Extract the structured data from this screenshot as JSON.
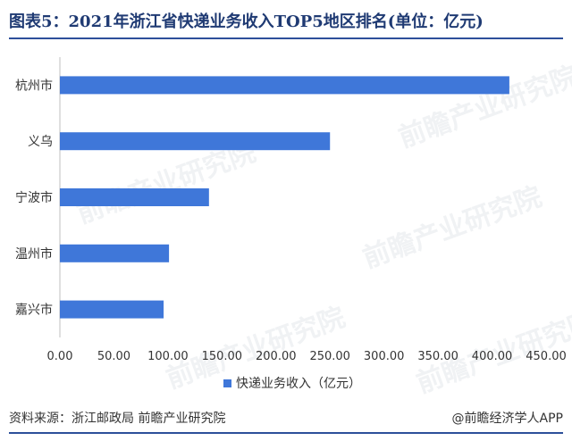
{
  "header": {
    "title": "图表5：2021年浙江省快递业务收入TOP5地区排名(单位：亿元)"
  },
  "footer": {
    "source": "资料来源：浙江邮政局 前瞻产业研究院",
    "copyright": "@前瞻经济学人APP"
  },
  "watermark": {
    "text": "前瞻产业研究院"
  },
  "colors": {
    "bar": "#3f77d9",
    "accent": "#2d4f9a"
  },
  "chart_data": {
    "type": "bar",
    "orientation": "horizontal",
    "categories": [
      "杭州市",
      "义乌",
      "宁波市",
      "温州市",
      "嘉兴市"
    ],
    "series": [
      {
        "name": "快递业务收入（亿元）",
        "values": [
          416,
          250,
          138,
          101,
          96
        ]
      }
    ],
    "xlim": [
      0,
      450
    ],
    "xticks": [
      "0.00",
      "50.00",
      "100.00",
      "150.00",
      "200.00",
      "250.00",
      "300.00",
      "350.00",
      "400.00",
      "450.00"
    ],
    "legend": "bottom",
    "grid": false
  }
}
